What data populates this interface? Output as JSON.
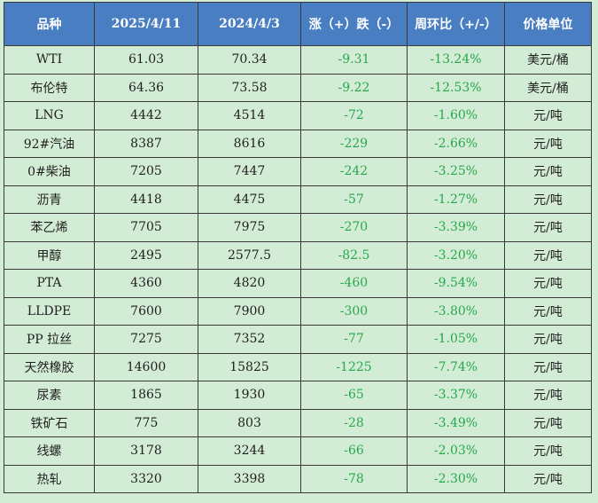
{
  "headers": [
    "品种",
    "2025/4/11",
    "2024/4/3",
    "涨（+）跌（-）",
    "周环比（+/-）",
    "价格单位"
  ],
  "rows": [
    {
      "name": "WTI",
      "current": "61.03",
      "previous": "70.34",
      "change": "-9.31",
      "pct": "-13.24%",
      "unit": "美元/桶"
    },
    {
      "name": "布伦特",
      "current": "64.36",
      "previous": "73.58",
      "change": "-9.22",
      "pct": "-12.53%",
      "unit": "美元/桶"
    },
    {
      "name": "LNG",
      "current": "4442",
      "previous": "4514",
      "change": "-72",
      "pct": "-1.60%",
      "unit": "元/吨"
    },
    {
      "name": "92#汽油",
      "current": "8387",
      "previous": "8616",
      "change": "-229",
      "pct": "-2.66%",
      "unit": "元/吨"
    },
    {
      "name": "0#柴油",
      "current": "7205",
      "previous": "7447",
      "change": "-242",
      "pct": "-3.25%",
      "unit": "元/吨"
    },
    {
      "name": "沥青",
      "current": "4418",
      "previous": "4475",
      "change": "-57",
      "pct": "-1.27%",
      "unit": "元/吨"
    },
    {
      "name": "苯乙烯",
      "current": "7705",
      "previous": "7975",
      "change": "-270",
      "pct": "-3.39%",
      "unit": "元/吨"
    },
    {
      "name": "甲醇",
      "current": "2495",
      "previous": "2577.5",
      "change": "-82.5",
      "pct": "-3.20%",
      "unit": "元/吨"
    },
    {
      "name": "PTA",
      "current": "4360",
      "previous": "4820",
      "change": "-460",
      "pct": "-9.54%",
      "unit": "元/吨"
    },
    {
      "name": "LLDPE",
      "current": "7600",
      "previous": "7900",
      "change": "-300",
      "pct": "-3.80%",
      "unit": "元/吨"
    },
    {
      "name": "PP 拉丝",
      "current": "7275",
      "previous": "7352",
      "change": "-77",
      "pct": "-1.05%",
      "unit": "元/吨"
    },
    {
      "name": "天然橡胶",
      "current": "14600",
      "previous": "15825",
      "change": "-1225",
      "pct": "-7.74%",
      "unit": "元/吨"
    },
    {
      "name": "尿素",
      "current": "1865",
      "previous": "1930",
      "change": "-65",
      "pct": "-3.37%",
      "unit": "元/吨"
    },
    {
      "name": "铁矿石",
      "current": "775",
      "previous": "803",
      "change": "-28",
      "pct": "-3.49%",
      "unit": "元/吨"
    },
    {
      "name": "线螺",
      "current": "3178",
      "previous": "3244",
      "change": "-66",
      "pct": "-2.03%",
      "unit": "元/吨"
    },
    {
      "name": "热轧",
      "current": "3320",
      "previous": "3398",
      "change": "-78",
      "pct": "-2.30%",
      "unit": "元/吨"
    }
  ],
  "colors": {
    "header_bg": "#4a7ec2",
    "body_bg": "#d3ecd6",
    "change_text": "#27a84a"
  }
}
